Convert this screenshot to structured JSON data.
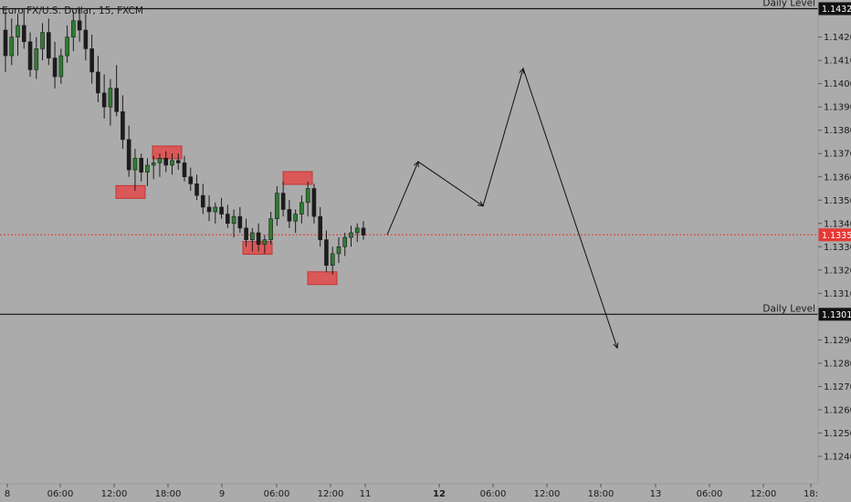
{
  "chart_data": {
    "type": "candlestick",
    "symbol": "Euro FX/U.S. Dollar, 15, FXCM",
    "y_ticks": [
      "1.14200",
      "1.14100",
      "1.14000",
      "1.13900",
      "1.13800",
      "1.13700",
      "1.13600",
      "1.13500",
      "1.13400",
      "1.13300",
      "1.13200",
      "1.13100",
      "1.12900",
      "1.12800",
      "1.12700",
      "1.12600",
      "1.12500",
      "1.12400"
    ],
    "ylim": [
      1.1236,
      1.1436
    ],
    "x_ticks": [
      "8",
      "06:00",
      "12:00",
      "18:00",
      "9",
      "06:00",
      "12:00",
      "11",
      "12",
      "06:00",
      "12:00",
      "18:00",
      "13",
      "06:00",
      "12:00",
      "18:"
    ],
    "levels": [
      {
        "label": "Daily Level",
        "value": 1.14322,
        "badge": "1.14322"
      },
      {
        "label": "Daily Level",
        "value": 1.1301,
        "badge": "1.13010"
      }
    ],
    "current_price": {
      "value": 1.13351,
      "badge": "1.13351",
      "color": "#e53935"
    },
    "price_path": [
      [
        1.1423,
        1.1431,
        1.1405,
        1.1412
      ],
      [
        1.1412,
        1.1428,
        1.1408,
        1.142
      ],
      [
        1.142,
        1.143,
        1.1412,
        1.1425
      ],
      [
        1.1425,
        1.1432,
        1.1415,
        1.1418
      ],
      [
        1.1418,
        1.1422,
        1.1403,
        1.1406
      ],
      [
        1.1406,
        1.142,
        1.1402,
        1.1415
      ],
      [
        1.1415,
        1.1426,
        1.141,
        1.1422
      ],
      [
        1.1422,
        1.1428,
        1.1408,
        1.1411
      ],
      [
        1.1411,
        1.1418,
        1.1398,
        1.1403
      ],
      [
        1.1403,
        1.1415,
        1.14,
        1.1412
      ],
      [
        1.1412,
        1.1425,
        1.1409,
        1.142
      ],
      [
        1.142,
        1.1431,
        1.1414,
        1.1427
      ],
      [
        1.1427,
        1.1432,
        1.1418,
        1.1423
      ],
      [
        1.1423,
        1.143,
        1.141,
        1.1415
      ],
      [
        1.1415,
        1.1421,
        1.14,
        1.1405
      ],
      [
        1.1405,
        1.1412,
        1.1392,
        1.1396
      ],
      [
        1.1396,
        1.1404,
        1.1385,
        1.139
      ],
      [
        1.139,
        1.1402,
        1.1382,
        1.1398
      ],
      [
        1.1398,
        1.1408,
        1.1386,
        1.1388
      ],
      [
        1.1388,
        1.1395,
        1.1372,
        1.1376
      ],
      [
        1.1376,
        1.1382,
        1.136,
        1.1363
      ],
      [
        1.1363,
        1.1372,
        1.1354,
        1.1368
      ],
      [
        1.1368,
        1.137,
        1.1358,
        1.1362
      ],
      [
        1.1362,
        1.1368,
        1.1356,
        1.1365
      ],
      [
        1.1365,
        1.1369,
        1.1359,
        1.1366
      ],
      [
        1.1366,
        1.137,
        1.136,
        1.1368
      ],
      [
        1.1368,
        1.1371,
        1.1362,
        1.1365
      ],
      [
        1.1365,
        1.137,
        1.1361,
        1.1367
      ],
      [
        1.1367,
        1.137,
        1.1363,
        1.1366
      ],
      [
        1.1366,
        1.1369,
        1.1358,
        1.136
      ],
      [
        1.136,
        1.1364,
        1.1354,
        1.1357
      ],
      [
        1.1357,
        1.1361,
        1.135,
        1.1352
      ],
      [
        1.1352,
        1.1357,
        1.1344,
        1.1347
      ],
      [
        1.1347,
        1.1352,
        1.1341,
        1.1345
      ],
      [
        1.1345,
        1.1349,
        1.134,
        1.1347
      ],
      [
        1.1347,
        1.1351,
        1.1342,
        1.1344
      ],
      [
        1.1344,
        1.1348,
        1.1338,
        1.134
      ],
      [
        1.134,
        1.1346,
        1.1334,
        1.1343
      ],
      [
        1.1343,
        1.1347,
        1.1336,
        1.1338
      ],
      [
        1.1338,
        1.1342,
        1.133,
        1.1333
      ],
      [
        1.1333,
        1.1338,
        1.1328,
        1.1336
      ],
      [
        1.1336,
        1.134,
        1.1328,
        1.1331
      ],
      [
        1.1331,
        1.1335,
        1.1327,
        1.1333
      ],
      [
        1.1333,
        1.1345,
        1.1331,
        1.1342
      ],
      [
        1.1342,
        1.1356,
        1.1339,
        1.1353
      ],
      [
        1.1353,
        1.1358,
        1.1343,
        1.1346
      ],
      [
        1.1346,
        1.135,
        1.1338,
        1.1341
      ],
      [
        1.1341,
        1.1346,
        1.1336,
        1.1344
      ],
      [
        1.1344,
        1.1352,
        1.134,
        1.1349
      ],
      [
        1.1349,
        1.1358,
        1.1343,
        1.1355
      ],
      [
        1.1355,
        1.1357,
        1.134,
        1.1343
      ],
      [
        1.1343,
        1.1347,
        1.133,
        1.1333
      ],
      [
        1.1333,
        1.1337,
        1.1319,
        1.1322
      ],
      [
        1.1322,
        1.133,
        1.1318,
        1.1327
      ],
      [
        1.1327,
        1.1334,
        1.1323,
        1.133
      ],
      [
        1.133,
        1.1336,
        1.1326,
        1.1334
      ],
      [
        1.1334,
        1.1339,
        1.133,
        1.1336
      ],
      [
        1.1336,
        1.134,
        1.1332,
        1.1338
      ],
      [
        1.1338,
        1.1341,
        1.1333,
        1.1335
      ]
    ],
    "projection": [
      [
        1.13351
      ],
      [
        1.13665
      ],
      [
        1.13475
      ],
      [
        1.14065
      ],
      [
        1.12865
      ]
    ],
    "sr_boxes": [
      {
        "value": 1.13535,
        "text": ""
      },
      {
        "value": 1.13705,
        "text": ""
      },
      {
        "value": 1.13295,
        "text": ""
      },
      {
        "value": 1.13595,
        "text": ""
      },
      {
        "value": 1.13165,
        "text": ""
      }
    ],
    "box_color": "#e05050",
    "grid": false,
    "background": "#ababab"
  }
}
